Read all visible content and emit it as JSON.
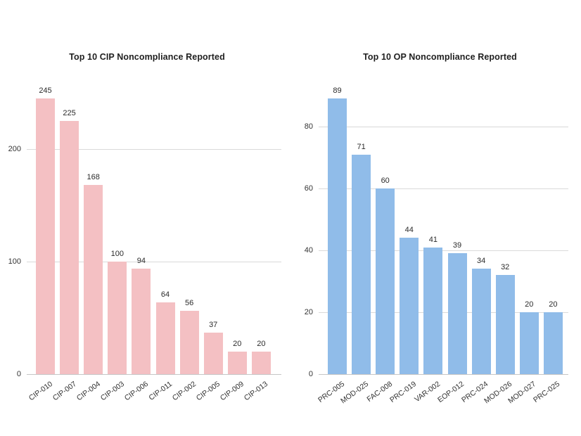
{
  "canvas": {
    "background": "#ffffff"
  },
  "chart_data": [
    {
      "type": "bar",
      "title": "Top 10 CIP Noncompliance Reported",
      "categories": [
        "CIP-010",
        "CIP-007",
        "CIP-004",
        "CIP-003",
        "CIP-006",
        "CIP-011",
        "CIP-002",
        "CIP-005",
        "CIP-009",
        "CIP-013"
      ],
      "values": [
        245,
        225,
        168,
        100,
        94,
        64,
        56,
        37,
        20,
        20
      ],
      "xlabel": "",
      "ylabel": "",
      "ylim": [
        0,
        250
      ],
      "yticks": [
        0,
        100,
        200
      ],
      "grid": true,
      "legend": false,
      "data_labels": true,
      "bar_color": "#f4c0c3"
    },
    {
      "type": "bar",
      "title": "Top 10 OP Noncompliance Reported",
      "categories": [
        "PRC-005",
        "MOD-025",
        "FAC-008",
        "PRC-019",
        "VAR-002",
        "EOP-012",
        "PRC-024",
        "MOD-026",
        "MOD-027",
        "PRC-025"
      ],
      "values": [
        89,
        71,
        60,
        44,
        41,
        39,
        34,
        32,
        20,
        20
      ],
      "xlabel": "",
      "ylabel": "",
      "ylim": [
        0,
        92
      ],
      "yticks": [
        0,
        20,
        40,
        60,
        80
      ],
      "grid": true,
      "legend": false,
      "data_labels": true,
      "bar_color": "#90bce9"
    }
  ],
  "colors": {
    "gridline": "#d9d9d9",
    "axis_line": "#c6c6c6",
    "label_text": "#333333",
    "title_text": "#1f1f1f"
  }
}
